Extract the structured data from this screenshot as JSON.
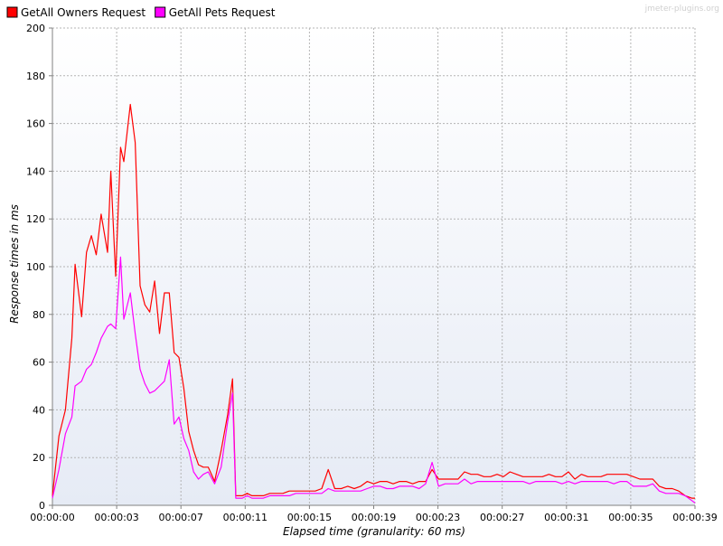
{
  "watermark": "jmeter-plugins.org",
  "legend": [
    {
      "label": "GetAll Owners Request",
      "color": "#ff0000"
    },
    {
      "label": "GetAll Pets Request",
      "color": "#ff00ff"
    }
  ],
  "chart_data": {
    "type": "line",
    "title": "",
    "xlabel": "Elapsed time (granularity: 60 ms)",
    "ylabel": "Response times in ms",
    "xlim": [
      0,
      39.6
    ],
    "ylim": [
      0,
      200
    ],
    "x_unit": "seconds",
    "x_ticks": [
      "00:00:00",
      "00:00:03",
      "00:00:07",
      "00:00:11",
      "00:00:15",
      "00:00:19",
      "00:00:23",
      "00:00:27",
      "00:00:31",
      "00:00:35",
      "00:00:39"
    ],
    "y_ticks": [
      0,
      20,
      40,
      60,
      80,
      100,
      120,
      140,
      160,
      180,
      200
    ],
    "grid": true,
    "legend_position": "top-left",
    "series": [
      {
        "name": "GetAll Owners Request",
        "color": "#ff0000",
        "points": [
          [
            0.0,
            4
          ],
          [
            0.4,
            29
          ],
          [
            0.8,
            40
          ],
          [
            1.2,
            70
          ],
          [
            1.4,
            101
          ],
          [
            1.8,
            79
          ],
          [
            2.1,
            106
          ],
          [
            2.4,
            113
          ],
          [
            2.7,
            105
          ],
          [
            3.0,
            122
          ],
          [
            3.4,
            106
          ],
          [
            3.6,
            140
          ],
          [
            3.9,
            96
          ],
          [
            4.2,
            150
          ],
          [
            4.4,
            144
          ],
          [
            4.8,
            168
          ],
          [
            5.1,
            152
          ],
          [
            5.4,
            92
          ],
          [
            5.7,
            84
          ],
          [
            6.0,
            81
          ],
          [
            6.3,
            94
          ],
          [
            6.6,
            72
          ],
          [
            6.9,
            89
          ],
          [
            7.2,
            89
          ],
          [
            7.5,
            64
          ],
          [
            7.8,
            62
          ],
          [
            8.1,
            49
          ],
          [
            8.4,
            31
          ],
          [
            8.7,
            23
          ],
          [
            9.0,
            17
          ],
          [
            9.3,
            16
          ],
          [
            9.6,
            16
          ],
          [
            10.0,
            10
          ],
          [
            10.4,
            23
          ],
          [
            10.8,
            38
          ],
          [
            11.1,
            53
          ],
          [
            11.3,
            4
          ],
          [
            11.7,
            4
          ],
          [
            12.0,
            5
          ],
          [
            12.3,
            4
          ],
          [
            12.6,
            4
          ],
          [
            13.0,
            4
          ],
          [
            13.4,
            5
          ],
          [
            13.8,
            5
          ],
          [
            14.2,
            5
          ],
          [
            14.6,
            6
          ],
          [
            15.0,
            6
          ],
          [
            15.4,
            6
          ],
          [
            15.8,
            6
          ],
          [
            16.2,
            6
          ],
          [
            16.6,
            7
          ],
          [
            17.0,
            15
          ],
          [
            17.4,
            7
          ],
          [
            17.8,
            7
          ],
          [
            18.2,
            8
          ],
          [
            18.6,
            7
          ],
          [
            19.0,
            8
          ],
          [
            19.4,
            10
          ],
          [
            19.8,
            9
          ],
          [
            20.2,
            10
          ],
          [
            20.6,
            10
          ],
          [
            21.0,
            9
          ],
          [
            21.4,
            10
          ],
          [
            21.8,
            10
          ],
          [
            22.2,
            9
          ],
          [
            22.6,
            10
          ],
          [
            23.0,
            10
          ],
          [
            23.4,
            15
          ],
          [
            23.8,
            11
          ],
          [
            24.2,
            11
          ],
          [
            24.6,
            11
          ],
          [
            25.0,
            11
          ],
          [
            25.4,
            14
          ],
          [
            25.8,
            13
          ],
          [
            26.2,
            13
          ],
          [
            26.6,
            12
          ],
          [
            27.0,
            12
          ],
          [
            27.4,
            13
          ],
          [
            27.8,
            12
          ],
          [
            28.2,
            14
          ],
          [
            28.6,
            13
          ],
          [
            29.0,
            12
          ],
          [
            29.4,
            12
          ],
          [
            29.8,
            12
          ],
          [
            30.2,
            12
          ],
          [
            30.6,
            13
          ],
          [
            31.0,
            12
          ],
          [
            31.4,
            12
          ],
          [
            31.8,
            14
          ],
          [
            32.2,
            11
          ],
          [
            32.6,
            13
          ],
          [
            33.0,
            12
          ],
          [
            33.4,
            12
          ],
          [
            33.8,
            12
          ],
          [
            34.2,
            13
          ],
          [
            34.6,
            13
          ],
          [
            35.0,
            13
          ],
          [
            35.4,
            13
          ],
          [
            35.8,
            12
          ],
          [
            36.2,
            11
          ],
          [
            36.6,
            11
          ],
          [
            37.0,
            11
          ],
          [
            37.4,
            8
          ],
          [
            37.8,
            7
          ],
          [
            38.2,
            7
          ],
          [
            38.6,
            6
          ],
          [
            39.0,
            4
          ],
          [
            39.4,
            3
          ],
          [
            39.6,
            3
          ]
        ]
      },
      {
        "name": "GetAll Pets Request",
        "color": "#ff00ff",
        "points": [
          [
            0.0,
            3
          ],
          [
            0.4,
            15
          ],
          [
            0.8,
            30
          ],
          [
            1.2,
            37
          ],
          [
            1.4,
            50
          ],
          [
            1.8,
            52
          ],
          [
            2.1,
            57
          ],
          [
            2.4,
            59
          ],
          [
            2.7,
            64
          ],
          [
            3.0,
            70
          ],
          [
            3.4,
            75
          ],
          [
            3.6,
            76
          ],
          [
            3.9,
            74
          ],
          [
            4.2,
            104
          ],
          [
            4.4,
            78
          ],
          [
            4.8,
            89
          ],
          [
            5.1,
            72
          ],
          [
            5.4,
            57
          ],
          [
            5.7,
            51
          ],
          [
            6.0,
            47
          ],
          [
            6.3,
            48
          ],
          [
            6.6,
            50
          ],
          [
            6.9,
            52
          ],
          [
            7.2,
            61
          ],
          [
            7.5,
            34
          ],
          [
            7.8,
            37
          ],
          [
            8.1,
            28
          ],
          [
            8.4,
            23
          ],
          [
            8.7,
            14
          ],
          [
            9.0,
            11
          ],
          [
            9.3,
            13
          ],
          [
            9.6,
            14
          ],
          [
            10.0,
            9
          ],
          [
            10.4,
            16
          ],
          [
            10.8,
            35
          ],
          [
            11.1,
            47
          ],
          [
            11.3,
            3
          ],
          [
            11.7,
            3
          ],
          [
            12.0,
            4
          ],
          [
            12.3,
            3
          ],
          [
            12.6,
            3
          ],
          [
            13.0,
            3
          ],
          [
            13.4,
            4
          ],
          [
            13.8,
            4
          ],
          [
            14.2,
            4
          ],
          [
            14.6,
            4
          ],
          [
            15.0,
            5
          ],
          [
            15.4,
            5
          ],
          [
            15.8,
            5
          ],
          [
            16.2,
            5
          ],
          [
            16.6,
            5
          ],
          [
            17.0,
            7
          ],
          [
            17.4,
            6
          ],
          [
            17.8,
            6
          ],
          [
            18.2,
            6
          ],
          [
            18.6,
            6
          ],
          [
            19.0,
            6
          ],
          [
            19.4,
            7
          ],
          [
            19.8,
            8
          ],
          [
            20.2,
            8
          ],
          [
            20.6,
            7
          ],
          [
            21.0,
            7
          ],
          [
            21.4,
            8
          ],
          [
            21.8,
            8
          ],
          [
            22.2,
            8
          ],
          [
            22.6,
            7
          ],
          [
            23.0,
            9
          ],
          [
            23.4,
            18
          ],
          [
            23.8,
            8
          ],
          [
            24.2,
            9
          ],
          [
            24.6,
            9
          ],
          [
            25.0,
            9
          ],
          [
            25.4,
            11
          ],
          [
            25.8,
            9
          ],
          [
            26.2,
            10
          ],
          [
            26.6,
            10
          ],
          [
            27.0,
            10
          ],
          [
            27.4,
            10
          ],
          [
            27.8,
            10
          ],
          [
            28.2,
            10
          ],
          [
            28.6,
            10
          ],
          [
            29.0,
            10
          ],
          [
            29.4,
            9
          ],
          [
            29.8,
            10
          ],
          [
            30.2,
            10
          ],
          [
            30.6,
            10
          ],
          [
            31.0,
            10
          ],
          [
            31.4,
            9
          ],
          [
            31.8,
            10
          ],
          [
            32.2,
            9
          ],
          [
            32.6,
            10
          ],
          [
            33.0,
            10
          ],
          [
            33.4,
            10
          ],
          [
            33.8,
            10
          ],
          [
            34.2,
            10
          ],
          [
            34.6,
            9
          ],
          [
            35.0,
            10
          ],
          [
            35.4,
            10
          ],
          [
            35.8,
            8
          ],
          [
            36.2,
            8
          ],
          [
            36.6,
            8
          ],
          [
            37.0,
            9
          ],
          [
            37.4,
            6
          ],
          [
            37.8,
            5
          ],
          [
            38.2,
            5
          ],
          [
            38.6,
            5
          ],
          [
            39.0,
            4
          ],
          [
            39.4,
            2
          ],
          [
            39.6,
            1
          ]
        ]
      }
    ]
  }
}
